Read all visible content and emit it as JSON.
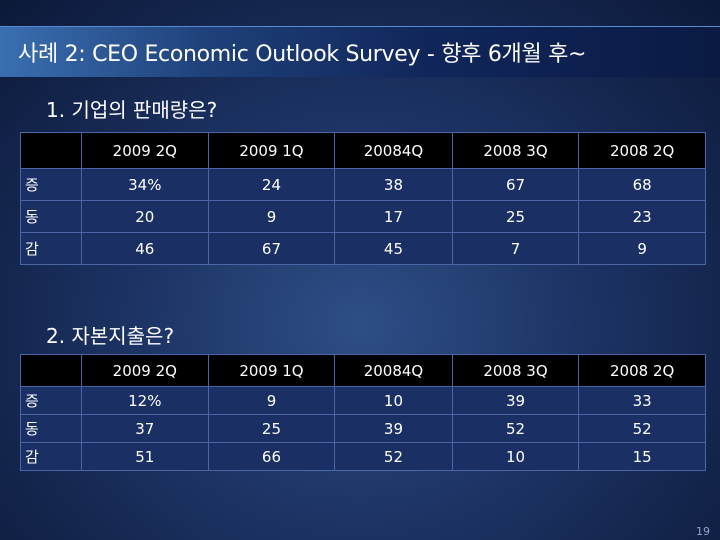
{
  "slide": {
    "title": "사례 2: CEO Economic Outlook Survey - 향후 6개월 후~",
    "page_number": "19"
  },
  "sections": [
    {
      "heading": "1. 기업의 판매량은?",
      "columns": [
        "2009 2Q",
        "2009 1Q",
        "20084Q",
        "2008 3Q",
        "2008 2Q"
      ],
      "rows": [
        {
          "label": "증",
          "values": [
            "34%",
            "24",
            "38",
            "67",
            "68"
          ]
        },
        {
          "label": "동",
          "values": [
            "20",
            "9",
            "17",
            "25",
            "23"
          ]
        },
        {
          "label": "감",
          "values": [
            "46",
            "67",
            "45",
            "7",
            "9"
          ]
        }
      ]
    },
    {
      "heading": "2. 자본지출은?",
      "columns": [
        "2009 2Q",
        "2009 1Q",
        "20084Q",
        "2008 3Q",
        "2008 2Q"
      ],
      "rows": [
        {
          "label": "증",
          "values": [
            "12%",
            "9",
            "10",
            "39",
            "33"
          ]
        },
        {
          "label": "동",
          "values": [
            "37",
            "25",
            "39",
            "52",
            "52"
          ]
        },
        {
          "label": "감",
          "values": [
            "51",
            "66",
            "52",
            "10",
            "15"
          ]
        }
      ]
    }
  ]
}
